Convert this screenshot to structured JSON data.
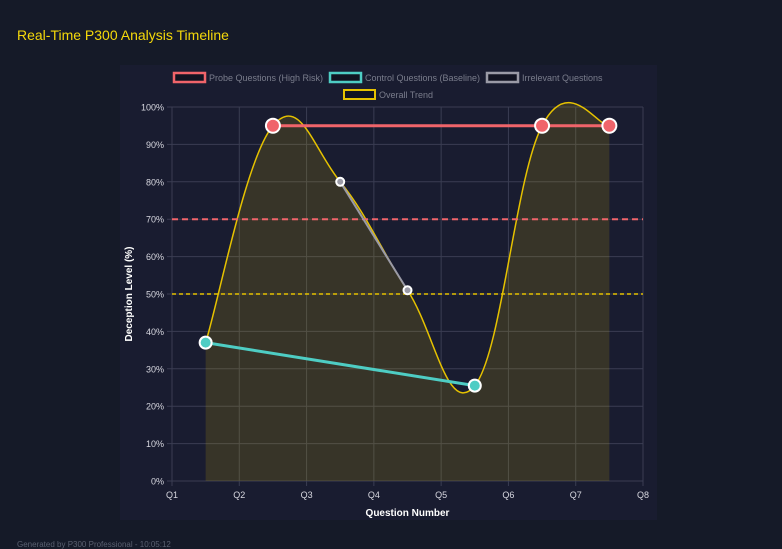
{
  "title": "Real-Time P300 Analysis Timeline",
  "footer": "Generated by P300 Professional - 10:05:12",
  "chart_data": {
    "type": "line",
    "xlabel": "Question Number",
    "ylabel": "Deception Level (%)",
    "categories": [
      "Q1",
      "Q2",
      "Q3",
      "Q4",
      "Q5",
      "Q6",
      "Q7",
      "Q8"
    ],
    "x": [
      1.5,
      2.5,
      3.5,
      4.5,
      5.5,
      6.5,
      7.5
    ],
    "ylim": [
      0,
      100
    ],
    "yticks": [
      "0%",
      "10%",
      "20%",
      "30%",
      "40%",
      "50%",
      "60%",
      "70%",
      "80%",
      "90%",
      "100%"
    ],
    "grid": true,
    "legend_position": "top",
    "series": [
      {
        "name": "Probe Questions (High Risk)",
        "color": "#f0646a",
        "values": [
          null,
          95,
          null,
          null,
          null,
          95,
          95
        ]
      },
      {
        "name": "Control Questions (Baseline)",
        "color": "#4ecdc4",
        "values": [
          37,
          null,
          null,
          null,
          25.5,
          null,
          null
        ]
      },
      {
        "name": "Irrelevant Questions",
        "color": "#9a9aa6",
        "values": [
          null,
          null,
          80,
          51,
          null,
          null,
          null
        ]
      },
      {
        "name": "Overall Trend",
        "color": "#e6c200",
        "values": [
          37,
          95,
          80,
          51,
          25.5,
          95,
          95
        ]
      }
    ],
    "thresholds": [
      {
        "value": 70,
        "color": "#f0646a"
      },
      {
        "value": 50,
        "color": "#e6c200"
      }
    ]
  }
}
